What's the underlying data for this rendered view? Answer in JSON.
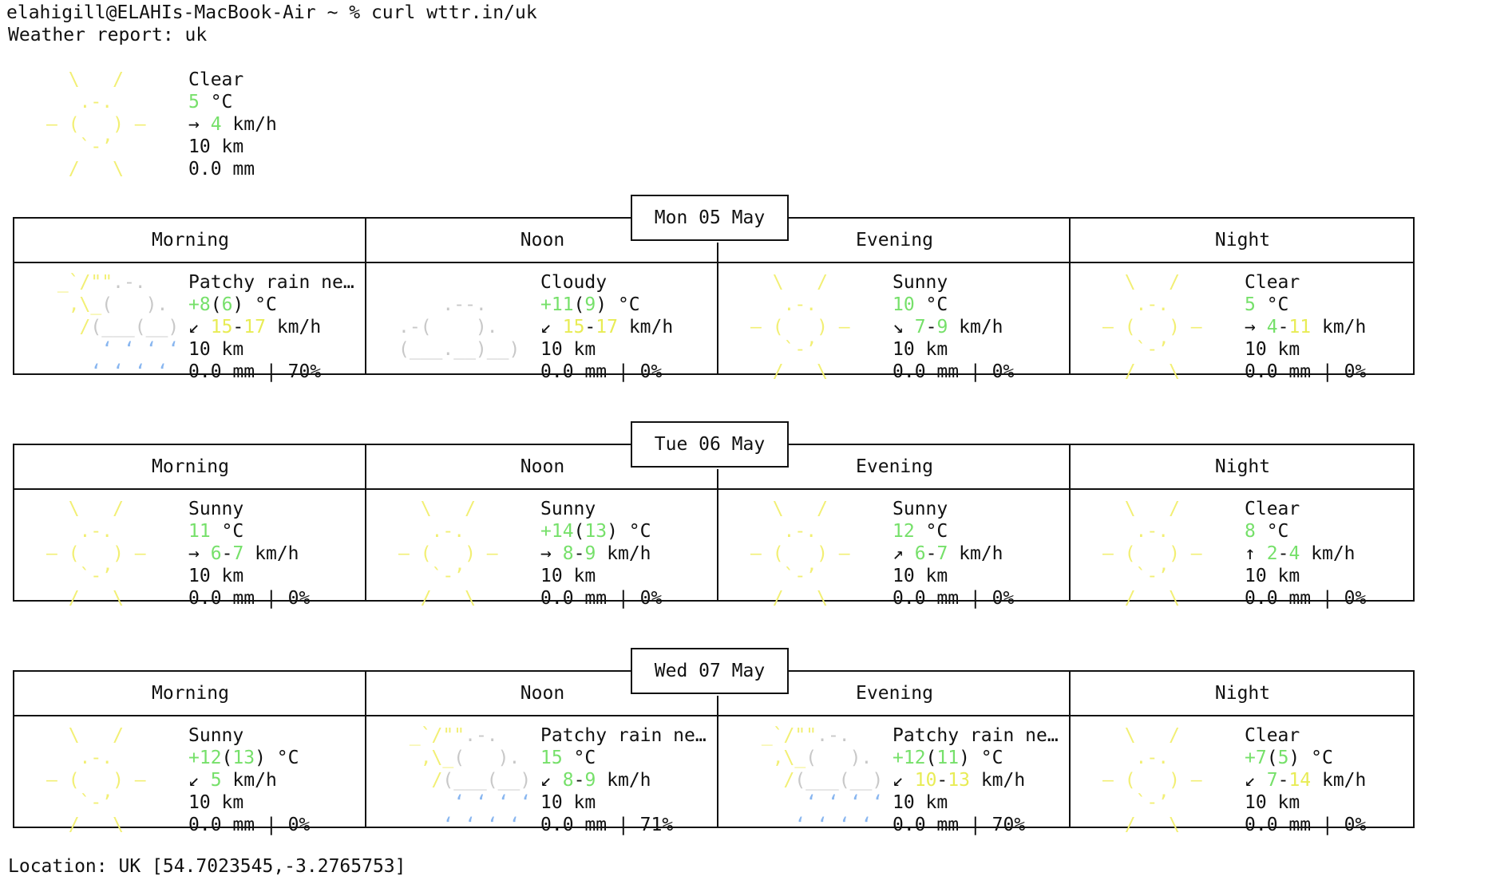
{
  "terminal": {
    "prompt": "elahigill@ELAHIs-MacBook-Air ~ % curl wttr.in/uk",
    "report_title": "Weather report: uk",
    "location": "Location: UK [54.7023545,-3.2765753]"
  },
  "current": {
    "condition": "Clear",
    "temp": "5",
    "temp_unit": " °C",
    "wind_dir": "→",
    "wind": "4",
    "wind_unit": " km/h",
    "visibility": "10 km",
    "precip": "0.0 mm"
  },
  "periods": [
    "Morning",
    "Noon",
    "Evening",
    "Night"
  ],
  "days": [
    {
      "date": "Mon 05 May",
      "cells": [
        {
          "icon": "rain",
          "condition": "Patchy rain ne…",
          "t1": "+8",
          "t2": "6",
          "wind_dir": "↙",
          "w1": "15",
          "w2": "17",
          "visibility": "10 km",
          "precip": "0.0 mm | 70%"
        },
        {
          "icon": "cloud",
          "condition": "Cloudy",
          "t1": "+11",
          "t2": "9",
          "wind_dir": "↙",
          "w1": "15",
          "w2": "17",
          "visibility": "10 km",
          "precip": "0.0 mm | 0%"
        },
        {
          "icon": "sun",
          "condition": "Sunny",
          "t1": "10",
          "t2": "",
          "wind_dir": "↘",
          "w1": "7",
          "w2": "9",
          "visibility": "10 km",
          "precip": "0.0 mm | 0%"
        },
        {
          "icon": "sun",
          "condition": "Clear",
          "t1": "5",
          "t2": "",
          "wind_dir": "→",
          "w1": "4",
          "w2": "11",
          "visibility": "10 km",
          "precip": "0.0 mm | 0%"
        }
      ]
    },
    {
      "date": "Tue 06 May",
      "cells": [
        {
          "icon": "sun",
          "condition": "Sunny",
          "t1": "11",
          "t2": "",
          "wind_dir": "→",
          "w1": "6",
          "w2": "7",
          "visibility": "10 km",
          "precip": "0.0 mm | 0%"
        },
        {
          "icon": "sun",
          "condition": "Sunny",
          "t1": "+14",
          "t2": "13",
          "wind_dir": "→",
          "w1": "8",
          "w2": "9",
          "visibility": "10 km",
          "precip": "0.0 mm | 0%"
        },
        {
          "icon": "sun",
          "condition": "Sunny",
          "t1": "12",
          "t2": "",
          "wind_dir": "↗",
          "w1": "6",
          "w2": "7",
          "visibility": "10 km",
          "precip": "0.0 mm | 0%"
        },
        {
          "icon": "sun",
          "condition": "Clear",
          "t1": "8",
          "t2": "",
          "wind_dir": "↑",
          "w1": "2",
          "w2": "4",
          "visibility": "10 km",
          "precip": "0.0 mm | 0%"
        }
      ]
    },
    {
      "date": "Wed 07 May",
      "cells": [
        {
          "icon": "sun",
          "condition": "Sunny",
          "t1": "+12",
          "t2": "13",
          "wind_dir": "↙",
          "w1": "5",
          "w2": "",
          "visibility": "10 km",
          "precip": "0.0 mm | 0%"
        },
        {
          "icon": "rain",
          "condition": "Patchy rain ne…",
          "t1": "15",
          "t2": "",
          "wind_dir": "↙",
          "w1": "8",
          "w2": "9",
          "visibility": "10 km",
          "precip": "0.0 mm | 71%"
        },
        {
          "icon": "rain",
          "condition": "Patchy rain ne…",
          "t1": "+12",
          "t2": "11",
          "wind_dir": "↙",
          "w1": "10",
          "w2": "13",
          "visibility": "10 km",
          "precip": "0.0 mm | 70%"
        },
        {
          "icon": "sun",
          "condition": "Clear",
          "t1": "+7",
          "t2": "5",
          "wind_dir": "↙",
          "w1": "7",
          "w2": "14",
          "visibility": "10 km",
          "precip": "0.0 mm | 0%"
        }
      ]
    }
  ]
}
